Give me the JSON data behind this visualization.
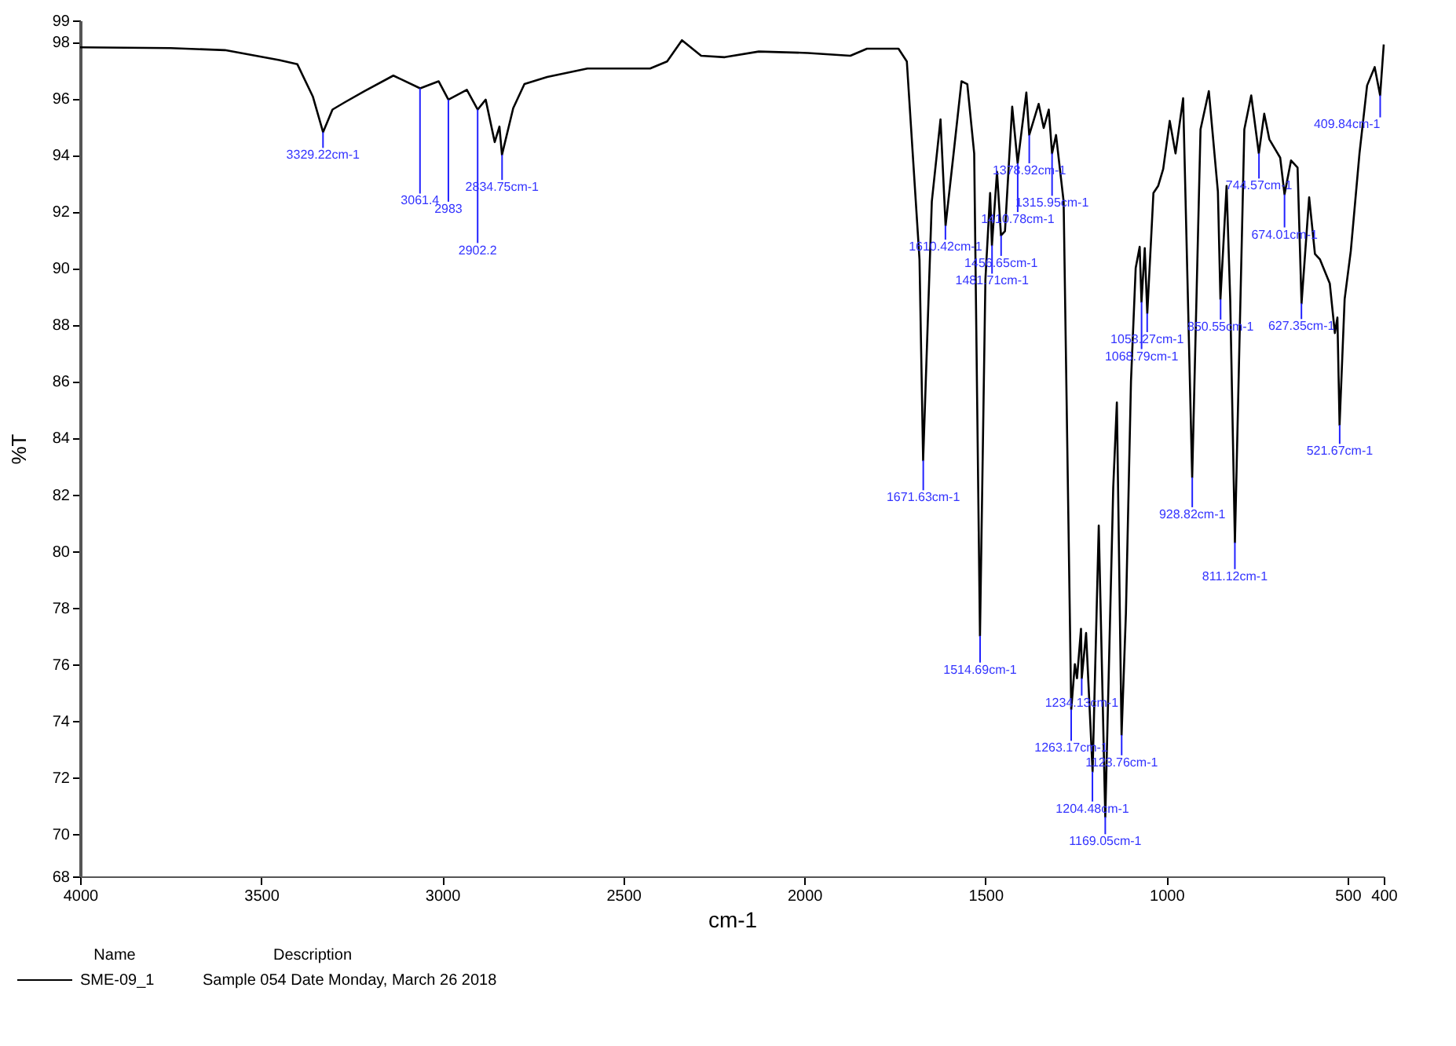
{
  "chart_data": {
    "type": "line",
    "xlabel": "cm-1",
    "ylabel": "%T",
    "legend": "bottom left",
    "legend_title": "Name",
    "xlim": [
      4000,
      400
    ],
    "xticks": [
      4000,
      3500,
      3000,
      2500,
      2000,
      1500,
      1000,
      500,
      400
    ],
    "ylim": [
      68.5,
      98.75
    ],
    "yticks": [
      {
        "value": 68.5,
        "label": "68"
      },
      70,
      72,
      74,
      76,
      78,
      80,
      82,
      84,
      86,
      88,
      90,
      92,
      94,
      96,
      98,
      {
        "value": 98.75,
        "label": "99"
      }
    ],
    "grid": false,
    "marker": "none",
    "line_style": "solid",
    "series": [
      {
        "name": "SME-09_1",
        "color": "#000000",
        "x": [
          4000,
          3750,
          3600,
          3450,
          3400,
          3357,
          3329,
          3303,
          3270,
          3215,
          3135,
          3061,
          3010,
          2983,
          2932,
          2902,
          2880,
          2855,
          2842,
          2835,
          2804,
          2773,
          2710,
          2599,
          2426,
          2379,
          2338,
          2285,
          2220,
          2126,
          1990,
          1873,
          1827,
          1740,
          1717,
          1682,
          1672,
          1648,
          1624,
          1610,
          1587,
          1566,
          1550,
          1531,
          1515,
          1500,
          1487,
          1482,
          1468,
          1457,
          1446,
          1426,
          1411,
          1387,
          1379,
          1353,
          1339,
          1325,
          1316,
          1305,
          1284,
          1263,
          1253,
          1247,
          1236,
          1234,
          1222,
          1204,
          1187,
          1169,
          1147,
          1137,
          1124,
          1112,
          1098,
          1085,
          1074,
          1069,
          1060,
          1053,
          1036,
          1023,
          1009,
          991,
          975,
          954,
          929,
          906,
          883,
          858,
          851,
          834,
          824,
          811,
          785,
          766,
          745,
          730,
          716,
          700,
          686,
          674,
          656,
          638,
          627,
          606,
          590,
          576,
          549,
          535,
          528,
          522,
          508,
          491,
          467,
          446,
          425,
          410,
          400
        ],
        "values": [
          97.8,
          97.77,
          97.7,
          97.35,
          97.2,
          96.05,
          94.8,
          95.6,
          95.85,
          96.25,
          96.8,
          96.35,
          96.6,
          95.95,
          96.3,
          95.6,
          95.95,
          94.45,
          95.0,
          94.0,
          95.65,
          96.5,
          96.75,
          97.05,
          97.05,
          97.3,
          98.05,
          97.5,
          97.45,
          97.65,
          97.6,
          97.5,
          97.75,
          97.75,
          97.3,
          90.3,
          83.2,
          92.35,
          95.25,
          91.5,
          94.15,
          96.6,
          96.5,
          94.05,
          77.0,
          89.6,
          92.65,
          90.8,
          93.4,
          91.15,
          91.3,
          95.7,
          93.7,
          96.2,
          94.7,
          95.8,
          94.95,
          95.6,
          94.05,
          94.7,
          92.35,
          74.4,
          76.0,
          75.5,
          77.25,
          75.5,
          77.1,
          72.2,
          80.9,
          70.6,
          82.25,
          85.25,
          73.5,
          77.8,
          86.0,
          90.0,
          90.75,
          88.8,
          90.7,
          88.4,
          92.65,
          92.9,
          93.5,
          95.2,
          94.05,
          96.0,
          82.6,
          94.9,
          96.25,
          92.7,
          88.9,
          92.9,
          88.9,
          80.3,
          94.9,
          96.1,
          94.05,
          95.45,
          94.55,
          94.2,
          93.9,
          92.6,
          93.8,
          93.55,
          88.75,
          92.5,
          90.5,
          90.3,
          89.45,
          87.7,
          88.25,
          84.45,
          88.9,
          90.6,
          94.05,
          96.45,
          97.1,
          96.1,
          97.9
        ]
      }
    ],
    "annotations": [
      {
        "text": "3329.22cm-1",
        "x": 3329.22,
        "y": 94.8
      },
      {
        "text": "3061.4",
        "x": 3061.4,
        "y": 96.35
      },
      {
        "text": "2983",
        "x": 2983,
        "y": 95.95
      },
      {
        "text": "2902.2",
        "x": 2902.2,
        "y": 95.6
      },
      {
        "text": "2834.75cm-1",
        "x": 2834.75,
        "y": 94.0
      },
      {
        "text": "1671.63cm-1",
        "x": 1671.63,
        "y": 83.2
      },
      {
        "text": "1610.42cm-1",
        "x": 1610.42,
        "y": 91.5
      },
      {
        "text": "1514.69cm-1",
        "x": 1514.69,
        "y": 77.0
      },
      {
        "text": "1481.71cm-1",
        "x": 1481.71,
        "y": 90.8
      },
      {
        "text": "1456.65cm-1",
        "x": 1456.65,
        "y": 91.15
      },
      {
        "text": "1410.78cm-1",
        "x": 1410.78,
        "y": 93.7
      },
      {
        "text": "1378.92cm-1",
        "x": 1378.92,
        "y": 94.7
      },
      {
        "text": "1315.95cm-1",
        "x": 1315.95,
        "y": 94.05
      },
      {
        "text": "1263.17cm-1",
        "x": 1263.17,
        "y": 74.4
      },
      {
        "text": "1234.13cm-1",
        "x": 1234.13,
        "y": 75.5
      },
      {
        "text": "1204.48cm-1",
        "x": 1204.48,
        "y": 72.2
      },
      {
        "text": "1169.05cm-1",
        "x": 1169.05,
        "y": 70.6
      },
      {
        "text": "1123.76cm-1",
        "x": 1123.76,
        "y": 73.5
      },
      {
        "text": "1068.79cm-1",
        "x": 1068.79,
        "y": 88.8
      },
      {
        "text": "1053.27cm-1",
        "x": 1053.27,
        "y": 88.4
      },
      {
        "text": "928.82cm-1",
        "x": 928.82,
        "y": 82.6
      },
      {
        "text": "850.55cm-1",
        "x": 850.55,
        "y": 88.9
      },
      {
        "text": "811.12cm-1",
        "x": 811.12,
        "y": 80.3
      },
      {
        "text": "744.57cm-1",
        "x": 744.57,
        "y": 94.05
      },
      {
        "text": "674.01cm-1",
        "x": 674.01,
        "y": 92.6
      },
      {
        "text": "627.35cm-1",
        "x": 627.35,
        "y": 88.75
      },
      {
        "text": "521.67cm-1",
        "x": 521.67,
        "y": 84.45
      },
      {
        "text": "409.84cm-1",
        "x": 409.84,
        "y": 96.1
      },
      "Description",
      "Sample 054 Date Monday, March 26 2018"
    ]
  }
}
